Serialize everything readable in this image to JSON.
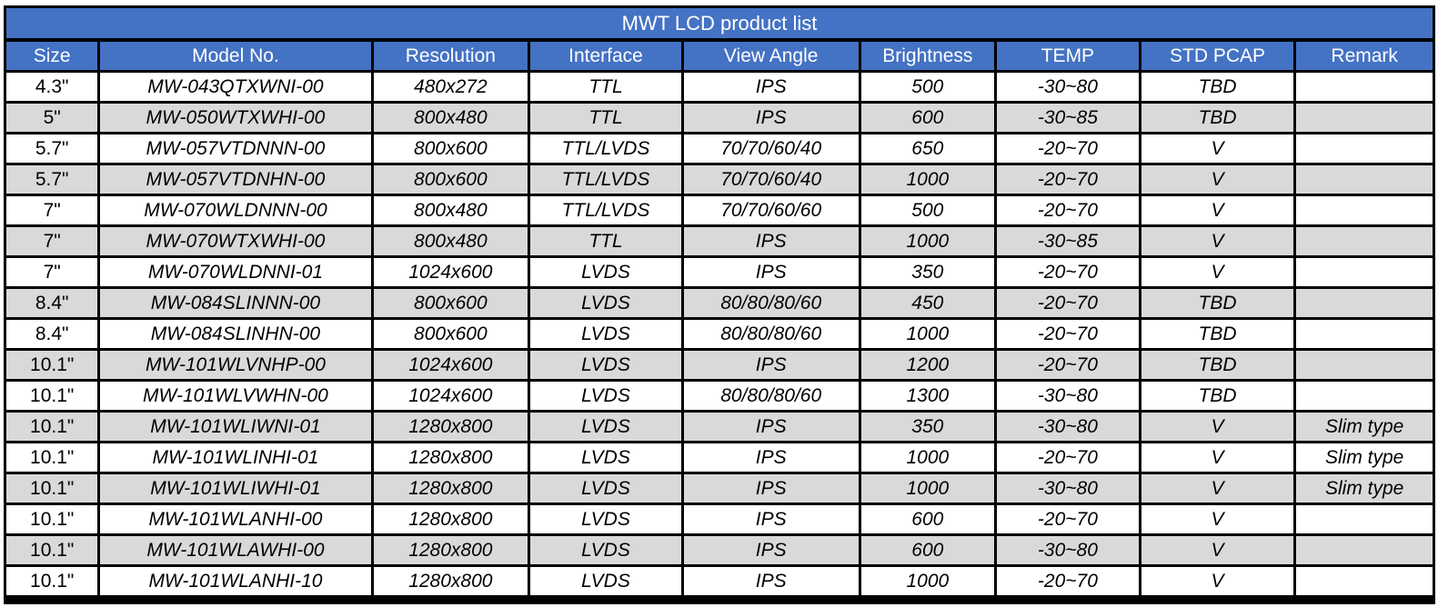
{
  "title": "MWT LCD product list",
  "columns": [
    "Size",
    "Model No.",
    "Resolution",
    "Interface",
    "View Angle",
    "Brightness",
    "TEMP",
    "STD PCAP",
    "Remark"
  ],
  "colors": {
    "header_bg": "#4472c4",
    "header_text": "#ffffff",
    "row_alt_bg": "#d9d9d9",
    "grid_line": "#000000"
  },
  "rows": [
    [
      "4.3\"",
      "MW-043QTXWNI-00",
      "480x272",
      "TTL",
      "IPS",
      "500",
      "-30~80",
      "TBD",
      ""
    ],
    [
      "5\"",
      "MW-050WTXWHI-00",
      "800x480",
      "TTL",
      "IPS",
      "600",
      "-30~85",
      "TBD",
      ""
    ],
    [
      "5.7\"",
      "MW-057VTDNNN-00",
      "800x600",
      "TTL/LVDS",
      "70/70/60/40",
      "650",
      "-20~70",
      "V",
      ""
    ],
    [
      "5.7\"",
      "MW-057VTDNHN-00",
      "800x600",
      "TTL/LVDS",
      "70/70/60/40",
      "1000",
      "-20~70",
      "V",
      ""
    ],
    [
      "7\"",
      "MW-070WLDNNN-00",
      "800x480",
      "TTL/LVDS",
      "70/70/60/60",
      "500",
      "-20~70",
      "V",
      ""
    ],
    [
      "7\"",
      "MW-070WTXWHI-00",
      "800x480",
      "TTL",
      "IPS",
      "1000",
      "-30~85",
      "V",
      ""
    ],
    [
      "7\"",
      "MW-070WLDNNI-01",
      "1024x600",
      "LVDS",
      "IPS",
      "350",
      "-20~70",
      "V",
      ""
    ],
    [
      "8.4\"",
      "MW-084SLINNN-00",
      "800x600",
      "LVDS",
      "80/80/80/60",
      "450",
      "-20~70",
      "TBD",
      ""
    ],
    [
      "8.4\"",
      "MW-084SLINHN-00",
      "800x600",
      "LVDS",
      "80/80/80/60",
      "1000",
      "-20~70",
      "TBD",
      ""
    ],
    [
      "10.1\"",
      "MW-101WLVNHP-00",
      "1024x600",
      "LVDS",
      "IPS",
      "1200",
      "-20~70",
      "TBD",
      ""
    ],
    [
      "10.1\"",
      "MW-101WLVWHN-00",
      "1024x600",
      "LVDS",
      "80/80/80/60",
      "1300",
      "-30~80",
      "TBD",
      ""
    ],
    [
      "10.1\"",
      "MW-101WLIWNI-01",
      "1280x800",
      "LVDS",
      "IPS",
      "350",
      "-30~80",
      "V",
      "Slim type"
    ],
    [
      "10.1\"",
      "MW-101WLINHI-01",
      "1280x800",
      "LVDS",
      "IPS",
      "1000",
      "-20~70",
      "V",
      "Slim type"
    ],
    [
      "10.1\"",
      "MW-101WLIWHI-01",
      "1280x800",
      "LVDS",
      "IPS",
      "1000",
      "-30~80",
      "V",
      "Slim type"
    ],
    [
      "10.1\"",
      "MW-101WLANHI-00",
      "1280x800",
      "LVDS",
      "IPS",
      "600",
      "-20~70",
      "V",
      ""
    ],
    [
      "10.1\"",
      "MW-101WLAWHI-00",
      "1280x800",
      "LVDS",
      "IPS",
      "600",
      "-30~80",
      "V",
      ""
    ],
    [
      "10.1\"",
      "MW-101WLANHI-10",
      "1280x800",
      "LVDS",
      "IPS",
      "1000",
      "-20~70",
      "V",
      ""
    ]
  ]
}
